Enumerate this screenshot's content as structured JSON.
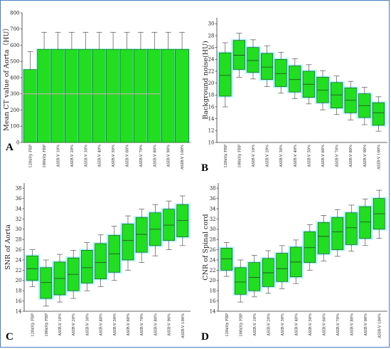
{
  "colors": {
    "box_fill": "#22dd22",
    "box_stroke": "#1f5a1f",
    "median": "#1f5a1f",
    "whisker": "#555555",
    "glow": "#6ff0ff",
    "artifact_pink": "#ff9fe0"
  },
  "chart_data": [
    {
      "type": "bar",
      "panel": "A",
      "ylabel": "Mean CT value of Aorta（HU）",
      "ylim": [
        0,
        800
      ],
      "yticks": [
        0,
        100,
        200,
        300,
        400,
        500,
        600,
        700,
        800
      ],
      "categories": [
        "120kVp FBP",
        "100kVp FBP",
        "ASIR-V 10%",
        "ASIR-V 20%",
        "ASIR-V 30%",
        "ASIR-V 40%",
        "ASIR-V 50%",
        "ASIR-V 60%",
        "ASIR-V 70%",
        "ASIR-V 80%",
        "ASIR-V 90%",
        "ASIR-V 100%"
      ],
      "values": [
        450,
        575,
        575,
        575,
        575,
        575,
        575,
        575,
        575,
        575,
        575,
        575
      ],
      "errors": [
        110,
        105,
        105,
        105,
        105,
        105,
        105,
        105,
        105,
        105,
        105,
        105
      ]
    },
    {
      "type": "box",
      "panel": "B",
      "ylabel": "Background noise(HU)",
      "ylim": [
        10,
        31
      ],
      "yticks": [
        10,
        12,
        14,
        16,
        18,
        20,
        22,
        24,
        26,
        28,
        30
      ],
      "categories": [
        "120kVp FBP",
        "100kVp FBP",
        "ASIR-V 10%",
        "ASIR-V 20%",
        "ASIR-V 30%",
        "ASIR-V 40%",
        "ASIR-V 50%",
        "ASIR-V 60%",
        "ASIR-V 70%",
        "ASIR-V 80%",
        "ASIR-V 90%",
        "ASIR-V 100%"
      ],
      "boxes": [
        {
          "min": 16.0,
          "q1": 17.8,
          "median": 21.3,
          "q3": 25.1,
          "max": 26.8
        },
        {
          "min": 21.0,
          "q1": 22.3,
          "median": 24.7,
          "q3": 27.2,
          "max": 28.4
        },
        {
          "min": 20.7,
          "q1": 21.8,
          "median": 23.8,
          "q3": 26.0,
          "max": 27.3
        },
        {
          "min": 19.4,
          "q1": 20.6,
          "median": 22.7,
          "q3": 25.0,
          "max": 26.3
        },
        {
          "min": 18.3,
          "q1": 19.4,
          "median": 21.6,
          "q3": 24.0,
          "max": 25.2
        },
        {
          "min": 17.4,
          "q1": 18.5,
          "median": 20.6,
          "q3": 22.9,
          "max": 24.1
        },
        {
          "min": 16.5,
          "q1": 17.6,
          "median": 19.8,
          "q3": 22.0,
          "max": 23.1
        },
        {
          "min": 15.5,
          "q1": 16.7,
          "median": 18.8,
          "q3": 21.0,
          "max": 22.1
        },
        {
          "min": 14.7,
          "q1": 15.8,
          "median": 18.0,
          "q3": 20.1,
          "max": 21.2
        },
        {
          "min": 13.8,
          "q1": 15.0,
          "median": 17.1,
          "q3": 19.2,
          "max": 20.3
        },
        {
          "min": 13.0,
          "q1": 14.2,
          "median": 16.2,
          "q3": 18.2,
          "max": 19.3
        },
        {
          "min": 11.9,
          "q1": 12.9,
          "median": 15.0,
          "q3": 16.7,
          "max": 17.7
        }
      ]
    },
    {
      "type": "box",
      "panel": "C",
      "ylabel": "SNR of Aorta",
      "ylim": [
        14,
        39
      ],
      "yticks": [
        14,
        16,
        18,
        20,
        22,
        24,
        26,
        28,
        30,
        32,
        34,
        36,
        38
      ],
      "categories": [
        "120kVp FBP",
        "100kVp FBP",
        "ASIR-V 10%",
        "ASIR-V 20%",
        "ASIR-V 30%",
        "ASIR-V 40%",
        "ASIR-V 50%",
        "ASIR-V 60%",
        "ASIR-V 70%",
        "ASIR-V 80%",
        "ASIR-V 90%",
        "ASIR-V 100%"
      ],
      "boxes": [
        {
          "min": 18.8,
          "q1": 20.0,
          "median": 22.3,
          "q3": 24.8,
          "max": 26.0
        },
        {
          "min": 15.0,
          "q1": 16.5,
          "median": 19.6,
          "q3": 22.5,
          "max": 24.0
        },
        {
          "min": 15.8,
          "q1": 17.2,
          "median": 20.4,
          "q3": 23.6,
          "max": 25.1
        },
        {
          "min": 16.5,
          "q1": 18.0,
          "median": 21.2,
          "q3": 24.4,
          "max": 25.9
        },
        {
          "min": 18.0,
          "q1": 19.5,
          "median": 22.5,
          "q3": 25.9,
          "max": 27.4
        },
        {
          "min": 18.8,
          "q1": 20.3,
          "median": 23.5,
          "q3": 27.2,
          "max": 28.9
        },
        {
          "min": 20.0,
          "q1": 21.6,
          "median": 25.2,
          "q3": 28.8,
          "max": 30.6
        },
        {
          "min": 22.0,
          "q1": 24.0,
          "median": 27.8,
          "q3": 31.0,
          "max": 32.6
        },
        {
          "min": 23.5,
          "q1": 25.5,
          "median": 29.0,
          "q3": 32.3,
          "max": 33.9
        },
        {
          "min": 24.8,
          "q1": 26.8,
          "median": 30.0,
          "q3": 33.2,
          "max": 34.8
        },
        {
          "min": 26.0,
          "q1": 27.8,
          "median": 30.8,
          "q3": 33.9,
          "max": 35.5
        },
        {
          "min": 26.8,
          "q1": 28.5,
          "median": 31.7,
          "q3": 34.8,
          "max": 36.5
        }
      ]
    },
    {
      "type": "box",
      "panel": "D",
      "ylabel": "CNR of Spinal cord",
      "ylim": [
        14,
        39
      ],
      "yticks": [
        14,
        16,
        18,
        20,
        22,
        24,
        26,
        28,
        30,
        32,
        34,
        36,
        38
      ],
      "categories": [
        "120kVp FBP",
        "100kVp FBP",
        "ASIR-V 10%",
        "ASIR-V 20%",
        "ASIR-V 30%",
        "ASIR-V 40%",
        "ASIR-V 50%",
        "ASIR-V 60%",
        "ASIR-V 70%",
        "ASIR-V 80%",
        "ASIR-V 90%",
        "ASIR-V 100%"
      ],
      "boxes": [
        {
          "min": 20.8,
          "q1": 22.0,
          "median": 24.2,
          "q3": 26.3,
          "max": 27.4
        },
        {
          "min": 15.8,
          "q1": 17.3,
          "median": 19.7,
          "q3": 22.5,
          "max": 24.0
        },
        {
          "min": 16.8,
          "q1": 18.0,
          "median": 20.6,
          "q3": 23.5,
          "max": 24.9
        },
        {
          "min": 17.5,
          "q1": 18.8,
          "median": 21.5,
          "q3": 24.3,
          "max": 25.8
        },
        {
          "min": 18.4,
          "q1": 19.8,
          "median": 22.3,
          "q3": 25.3,
          "max": 26.8
        },
        {
          "min": 19.4,
          "q1": 20.7,
          "median": 23.6,
          "q3": 26.5,
          "max": 27.9
        },
        {
          "min": 22.0,
          "q1": 23.5,
          "median": 26.4,
          "q3": 29.5,
          "max": 30.9
        },
        {
          "min": 23.8,
          "q1": 25.2,
          "median": 28.6,
          "q3": 31.3,
          "max": 32.7
        },
        {
          "min": 24.7,
          "q1": 26.0,
          "median": 29.5,
          "q3": 32.3,
          "max": 33.8
        },
        {
          "min": 25.7,
          "q1": 27.0,
          "median": 30.3,
          "q3": 33.2,
          "max": 34.7
        },
        {
          "min": 26.8,
          "q1": 28.2,
          "median": 31.4,
          "q3": 34.4,
          "max": 35.9
        },
        {
          "min": 28.2,
          "q1": 30.0,
          "median": 33.0,
          "q3": 36.0,
          "max": 37.6
        }
      ]
    }
  ]
}
